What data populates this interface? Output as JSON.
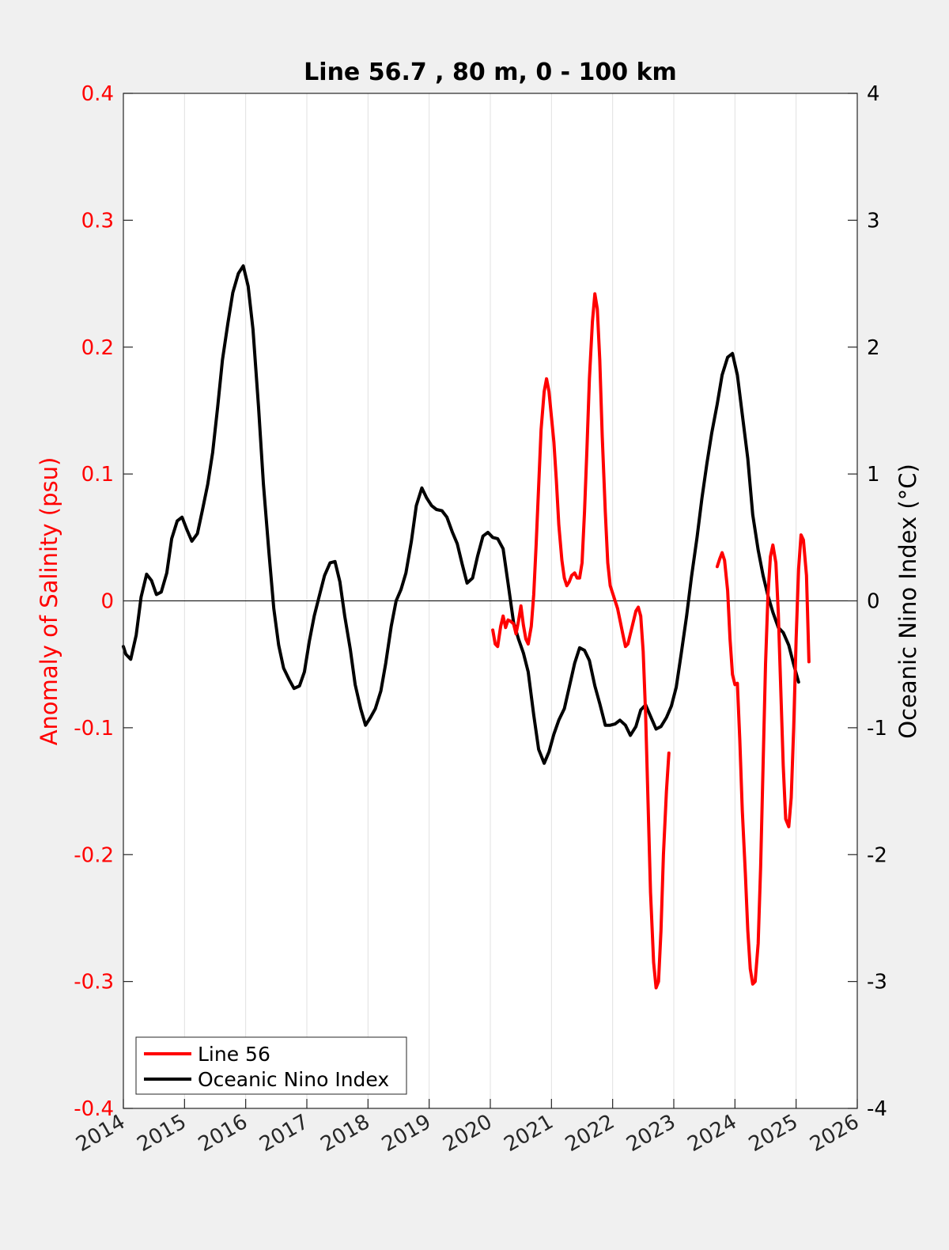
{
  "chart_data": {
    "type": "line",
    "title": "Line 56.7 , 80 m, 0 - 100 km",
    "xlabel": "",
    "ylabel_left": "Anomaly of Salinity (psu)",
    "ylabel_right": "Oceanic Nino Index (°C)",
    "xlim": [
      2014,
      2026
    ],
    "ylim_left": [
      -0.4,
      0.4
    ],
    "ylim_right": [
      -4,
      4
    ],
    "x_ticks": [
      "2014",
      "2015",
      "2016",
      "2017",
      "2018",
      "2019",
      "2020",
      "2021",
      "2022",
      "2023",
      "2024",
      "2025",
      "2026"
    ],
    "y_ticks_left": [
      "-0.4",
      "-0.3",
      "-0.2",
      "-0.1",
      "0",
      "0.1",
      "0.2",
      "0.3",
      "0.4"
    ],
    "y_ticks_right": [
      "-4",
      "-3",
      "-2",
      "-1",
      "0",
      "1",
      "2",
      "3",
      "4"
    ],
    "grid": "vertical",
    "legend_position": "bottom-left",
    "colors": {
      "left_axis": "#ff0000",
      "right_axis": "#000000",
      "background": "#f0f0f0",
      "plot_bg": "#ffffff",
      "grid": "#e0e0e0"
    },
    "series": [
      {
        "name": "Line 56",
        "axis": "left",
        "color": "#ff0000",
        "segments": [
          [
            [
              2020.04,
              -0.023
            ],
            [
              2020.08,
              -0.034
            ],
            [
              2020.12,
              -0.036
            ],
            [
              2020.17,
              -0.02
            ],
            [
              2020.21,
              -0.012
            ],
            [
              2020.25,
              -0.021
            ],
            [
              2020.29,
              -0.015
            ],
            [
              2020.33,
              -0.016
            ],
            [
              2020.38,
              -0.018
            ],
            [
              2020.42,
              -0.026
            ],
            [
              2020.46,
              -0.016
            ],
            [
              2020.5,
              -0.004
            ],
            [
              2020.54,
              -0.019
            ],
            [
              2020.58,
              -0.03
            ],
            [
              2020.62,
              -0.034
            ],
            [
              2020.67,
              -0.02
            ],
            [
              2020.71,
              0.005
            ],
            [
              2020.75,
              0.045
            ],
            [
              2020.79,
              0.09
            ],
            [
              2020.83,
              0.135
            ],
            [
              2020.88,
              0.165
            ],
            [
              2020.92,
              0.175
            ],
            [
              2020.96,
              0.165
            ],
            [
              2021.0,
              0.145
            ],
            [
              2021.04,
              0.125
            ],
            [
              2021.08,
              0.095
            ],
            [
              2021.12,
              0.06
            ],
            [
              2021.17,
              0.032
            ],
            [
              2021.21,
              0.018
            ],
            [
              2021.25,
              0.012
            ],
            [
              2021.29,
              0.015
            ],
            [
              2021.33,
              0.02
            ],
            [
              2021.38,
              0.022
            ],
            [
              2021.42,
              0.018
            ],
            [
              2021.46,
              0.018
            ],
            [
              2021.5,
              0.03
            ],
            [
              2021.54,
              0.07
            ],
            [
              2021.58,
              0.12
            ],
            [
              2021.62,
              0.175
            ],
            [
              2021.67,
              0.22
            ],
            [
              2021.71,
              0.242
            ],
            [
              2021.75,
              0.23
            ],
            [
              2021.79,
              0.19
            ],
            [
              2021.83,
              0.13
            ],
            [
              2021.88,
              0.07
            ],
            [
              2021.92,
              0.03
            ],
            [
              2021.96,
              0.012
            ],
            [
              2022.0,
              0.006
            ],
            [
              2022.04,
              0.0
            ],
            [
              2022.08,
              -0.006
            ],
            [
              2022.12,
              -0.015
            ],
            [
              2022.17,
              -0.027
            ],
            [
              2022.21,
              -0.036
            ],
            [
              2022.25,
              -0.034
            ],
            [
              2022.29,
              -0.026
            ],
            [
              2022.33,
              -0.018
            ],
            [
              2022.38,
              -0.008
            ],
            [
              2022.42,
              -0.005
            ],
            [
              2022.46,
              -0.012
            ],
            [
              2022.5,
              -0.04
            ],
            [
              2022.54,
              -0.09
            ],
            [
              2022.58,
              -0.16
            ],
            [
              2022.62,
              -0.23
            ],
            [
              2022.67,
              -0.285
            ],
            [
              2022.71,
              -0.305
            ],
            [
              2022.75,
              -0.3
            ],
            [
              2022.79,
              -0.26
            ],
            [
              2022.83,
              -0.2
            ],
            [
              2022.88,
              -0.15
            ],
            [
              2022.92,
              -0.12
            ]
          ],
          [
            [
              2023.71,
              0.027
            ],
            [
              2023.75,
              0.033
            ],
            [
              2023.79,
              0.038
            ],
            [
              2023.83,
              0.032
            ],
            [
              2023.88,
              0.008
            ],
            [
              2023.92,
              -0.03
            ],
            [
              2023.96,
              -0.058
            ],
            [
              2024.0,
              -0.066
            ],
            [
              2024.04,
              -0.065
            ],
            [
              2024.08,
              -0.11
            ],
            [
              2024.12,
              -0.165
            ],
            [
              2024.17,
              -0.215
            ],
            [
              2024.21,
              -0.26
            ],
            [
              2024.25,
              -0.29
            ],
            [
              2024.29,
              -0.302
            ],
            [
              2024.33,
              -0.3
            ],
            [
              2024.38,
              -0.27
            ],
            [
              2024.42,
              -0.21
            ],
            [
              2024.46,
              -0.13
            ],
            [
              2024.5,
              -0.05
            ],
            [
              2024.54,
              0.005
            ],
            [
              2024.58,
              0.035
            ],
            [
              2024.62,
              0.044
            ],
            [
              2024.67,
              0.03
            ],
            [
              2024.71,
              -0.01
            ],
            [
              2024.75,
              -0.07
            ],
            [
              2024.79,
              -0.13
            ],
            [
              2024.83,
              -0.172
            ],
            [
              2024.88,
              -0.178
            ],
            [
              2024.92,
              -0.155
            ],
            [
              2024.96,
              -0.1
            ],
            [
              2025.0,
              -0.03
            ],
            [
              2025.04,
              0.025
            ],
            [
              2025.08,
              0.052
            ],
            [
              2025.12,
              0.048
            ],
            [
              2025.17,
              0.02
            ],
            [
              2025.21,
              -0.048
            ]
          ]
        ]
      },
      {
        "name": "Oceanic Nino Index",
        "axis": "right",
        "color": "#000000",
        "segments": [
          [
            [
              2014.0,
              -0.36
            ],
            [
              2014.04,
              -0.42
            ],
            [
              2014.12,
              -0.46
            ],
            [
              2014.21,
              -0.27
            ],
            [
              2014.29,
              0.03
            ],
            [
              2014.38,
              0.21
            ],
            [
              2014.46,
              0.16
            ],
            [
              2014.54,
              0.05
            ],
            [
              2014.62,
              0.07
            ],
            [
              2014.71,
              0.22
            ],
            [
              2014.79,
              0.49
            ],
            [
              2014.88,
              0.63
            ],
            [
              2014.96,
              0.66
            ],
            [
              2015.04,
              0.56
            ],
            [
              2015.12,
              0.47
            ],
            [
              2015.21,
              0.53
            ],
            [
              2015.29,
              0.71
            ],
            [
              2015.38,
              0.92
            ],
            [
              2015.46,
              1.17
            ],
            [
              2015.54,
              1.52
            ],
            [
              2015.62,
              1.9
            ],
            [
              2015.71,
              2.19
            ],
            [
              2015.79,
              2.43
            ],
            [
              2015.88,
              2.58
            ],
            [
              2015.96,
              2.64
            ],
            [
              2016.04,
              2.48
            ],
            [
              2016.12,
              2.14
            ],
            [
              2016.21,
              1.53
            ],
            [
              2016.29,
              0.92
            ],
            [
              2016.38,
              0.38
            ],
            [
              2016.46,
              -0.06
            ],
            [
              2016.54,
              -0.35
            ],
            [
              2016.62,
              -0.53
            ],
            [
              2016.71,
              -0.62
            ],
            [
              2016.79,
              -0.69
            ],
            [
              2016.88,
              -0.67
            ],
            [
              2016.96,
              -0.56
            ],
            [
              2017.04,
              -0.32
            ],
            [
              2017.12,
              -0.12
            ],
            [
              2017.21,
              0.05
            ],
            [
              2017.29,
              0.2
            ],
            [
              2017.38,
              0.3
            ],
            [
              2017.46,
              0.31
            ],
            [
              2017.54,
              0.15
            ],
            [
              2017.62,
              -0.12
            ],
            [
              2017.71,
              -0.38
            ],
            [
              2017.79,
              -0.66
            ],
            [
              2017.88,
              -0.85
            ],
            [
              2017.96,
              -0.98
            ],
            [
              2018.04,
              -0.92
            ],
            [
              2018.12,
              -0.85
            ],
            [
              2018.21,
              -0.71
            ],
            [
              2018.29,
              -0.49
            ],
            [
              2018.38,
              -0.2
            ],
            [
              2018.46,
              0.0
            ],
            [
              2018.54,
              0.09
            ],
            [
              2018.62,
              0.22
            ],
            [
              2018.71,
              0.47
            ],
            [
              2018.79,
              0.75
            ],
            [
              2018.88,
              0.89
            ],
            [
              2018.96,
              0.81
            ],
            [
              2019.04,
              0.75
            ],
            [
              2019.12,
              0.72
            ],
            [
              2019.21,
              0.71
            ],
            [
              2019.29,
              0.66
            ],
            [
              2019.38,
              0.54
            ],
            [
              2019.46,
              0.45
            ],
            [
              2019.54,
              0.29
            ],
            [
              2019.62,
              0.14
            ],
            [
              2019.71,
              0.18
            ],
            [
              2019.79,
              0.35
            ],
            [
              2019.88,
              0.51
            ],
            [
              2019.96,
              0.54
            ],
            [
              2020.04,
              0.5
            ],
            [
              2020.12,
              0.49
            ],
            [
              2020.21,
              0.41
            ],
            [
              2020.29,
              0.14
            ],
            [
              2020.38,
              -0.17
            ],
            [
              2020.46,
              -0.3
            ],
            [
              2020.54,
              -0.41
            ],
            [
              2020.62,
              -0.56
            ],
            [
              2020.71,
              -0.9
            ],
            [
              2020.79,
              -1.17
            ],
            [
              2020.88,
              -1.28
            ],
            [
              2020.96,
              -1.19
            ],
            [
              2021.04,
              -1.05
            ],
            [
              2021.12,
              -0.94
            ],
            [
              2021.21,
              -0.85
            ],
            [
              2021.29,
              -0.68
            ],
            [
              2021.38,
              -0.49
            ],
            [
              2021.46,
              -0.37
            ],
            [
              2021.54,
              -0.39
            ],
            [
              2021.62,
              -0.47
            ],
            [
              2021.71,
              -0.67
            ],
            [
              2021.79,
              -0.81
            ],
            [
              2021.88,
              -0.98
            ],
            [
              2021.96,
              -0.98
            ],
            [
              2022.04,
              -0.97
            ],
            [
              2022.12,
              -0.94
            ],
            [
              2022.21,
              -0.98
            ],
            [
              2022.29,
              -1.06
            ],
            [
              2022.38,
              -0.99
            ],
            [
              2022.46,
              -0.86
            ],
            [
              2022.54,
              -0.82
            ],
            [
              2022.62,
              -0.91
            ],
            [
              2022.71,
              -1.01
            ],
            [
              2022.79,
              -0.99
            ],
            [
              2022.88,
              -0.92
            ],
            [
              2022.96,
              -0.83
            ],
            [
              2023.04,
              -0.68
            ],
            [
              2023.12,
              -0.42
            ],
            [
              2023.21,
              -0.12
            ],
            [
              2023.29,
              0.19
            ],
            [
              2023.38,
              0.5
            ],
            [
              2023.46,
              0.81
            ],
            [
              2023.54,
              1.08
            ],
            [
              2023.62,
              1.32
            ],
            [
              2023.71,
              1.55
            ],
            [
              2023.79,
              1.78
            ],
            [
              2023.88,
              1.92
            ],
            [
              2023.96,
              1.95
            ],
            [
              2024.04,
              1.78
            ],
            [
              2024.12,
              1.47
            ],
            [
              2024.21,
              1.12
            ],
            [
              2024.29,
              0.68
            ],
            [
              2024.38,
              0.4
            ],
            [
              2024.46,
              0.2
            ],
            [
              2024.54,
              0.04
            ],
            [
              2024.62,
              -0.09
            ],
            [
              2024.71,
              -0.21
            ],
            [
              2024.79,
              -0.25
            ],
            [
              2024.88,
              -0.35
            ],
            [
              2024.96,
              -0.5
            ],
            [
              2025.04,
              -0.64
            ]
          ]
        ]
      }
    ]
  }
}
